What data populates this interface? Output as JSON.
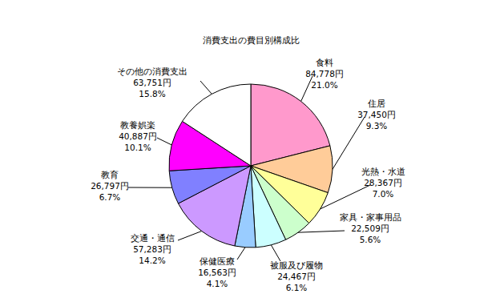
{
  "chart_data": {
    "type": "pie",
    "title": "消費支出の費目別構成比",
    "categories": [
      "食料",
      "住居",
      "光熱・水道",
      "家具・家事用品",
      "被服及び履物",
      "保健医療",
      "交通・通信",
      "教育",
      "教養娯楽",
      "その他の消費支出"
    ],
    "values": [
      84778,
      37450,
      28367,
      22509,
      24467,
      16563,
      57283,
      26797,
      40887,
      63751
    ],
    "value_labels": [
      "84,778円",
      "37,450円",
      "28,367円",
      "22,509円",
      "24,467円",
      "16,563円",
      "57,283円",
      "26,797円",
      "40,887円",
      "63,751円"
    ],
    "percentages": [
      21.0,
      9.3,
      7.0,
      5.6,
      6.1,
      4.1,
      14.2,
      6.7,
      10.1,
      15.8
    ],
    "percentage_labels": [
      "21.0%",
      "9.3%",
      "7.0%",
      "5.6%",
      "6.1%",
      "4.1%",
      "14.2%",
      "6.7%",
      "10.1%",
      "15.8%"
    ],
    "colors": [
      "#ff99cc",
      "#ffcc99",
      "#ffff99",
      "#ccffcc",
      "#ccffff",
      "#99ccff",
      "#cc99ff",
      "#8080ff",
      "#ff00ff",
      "#ffffff"
    ],
    "data_labels": true
  }
}
